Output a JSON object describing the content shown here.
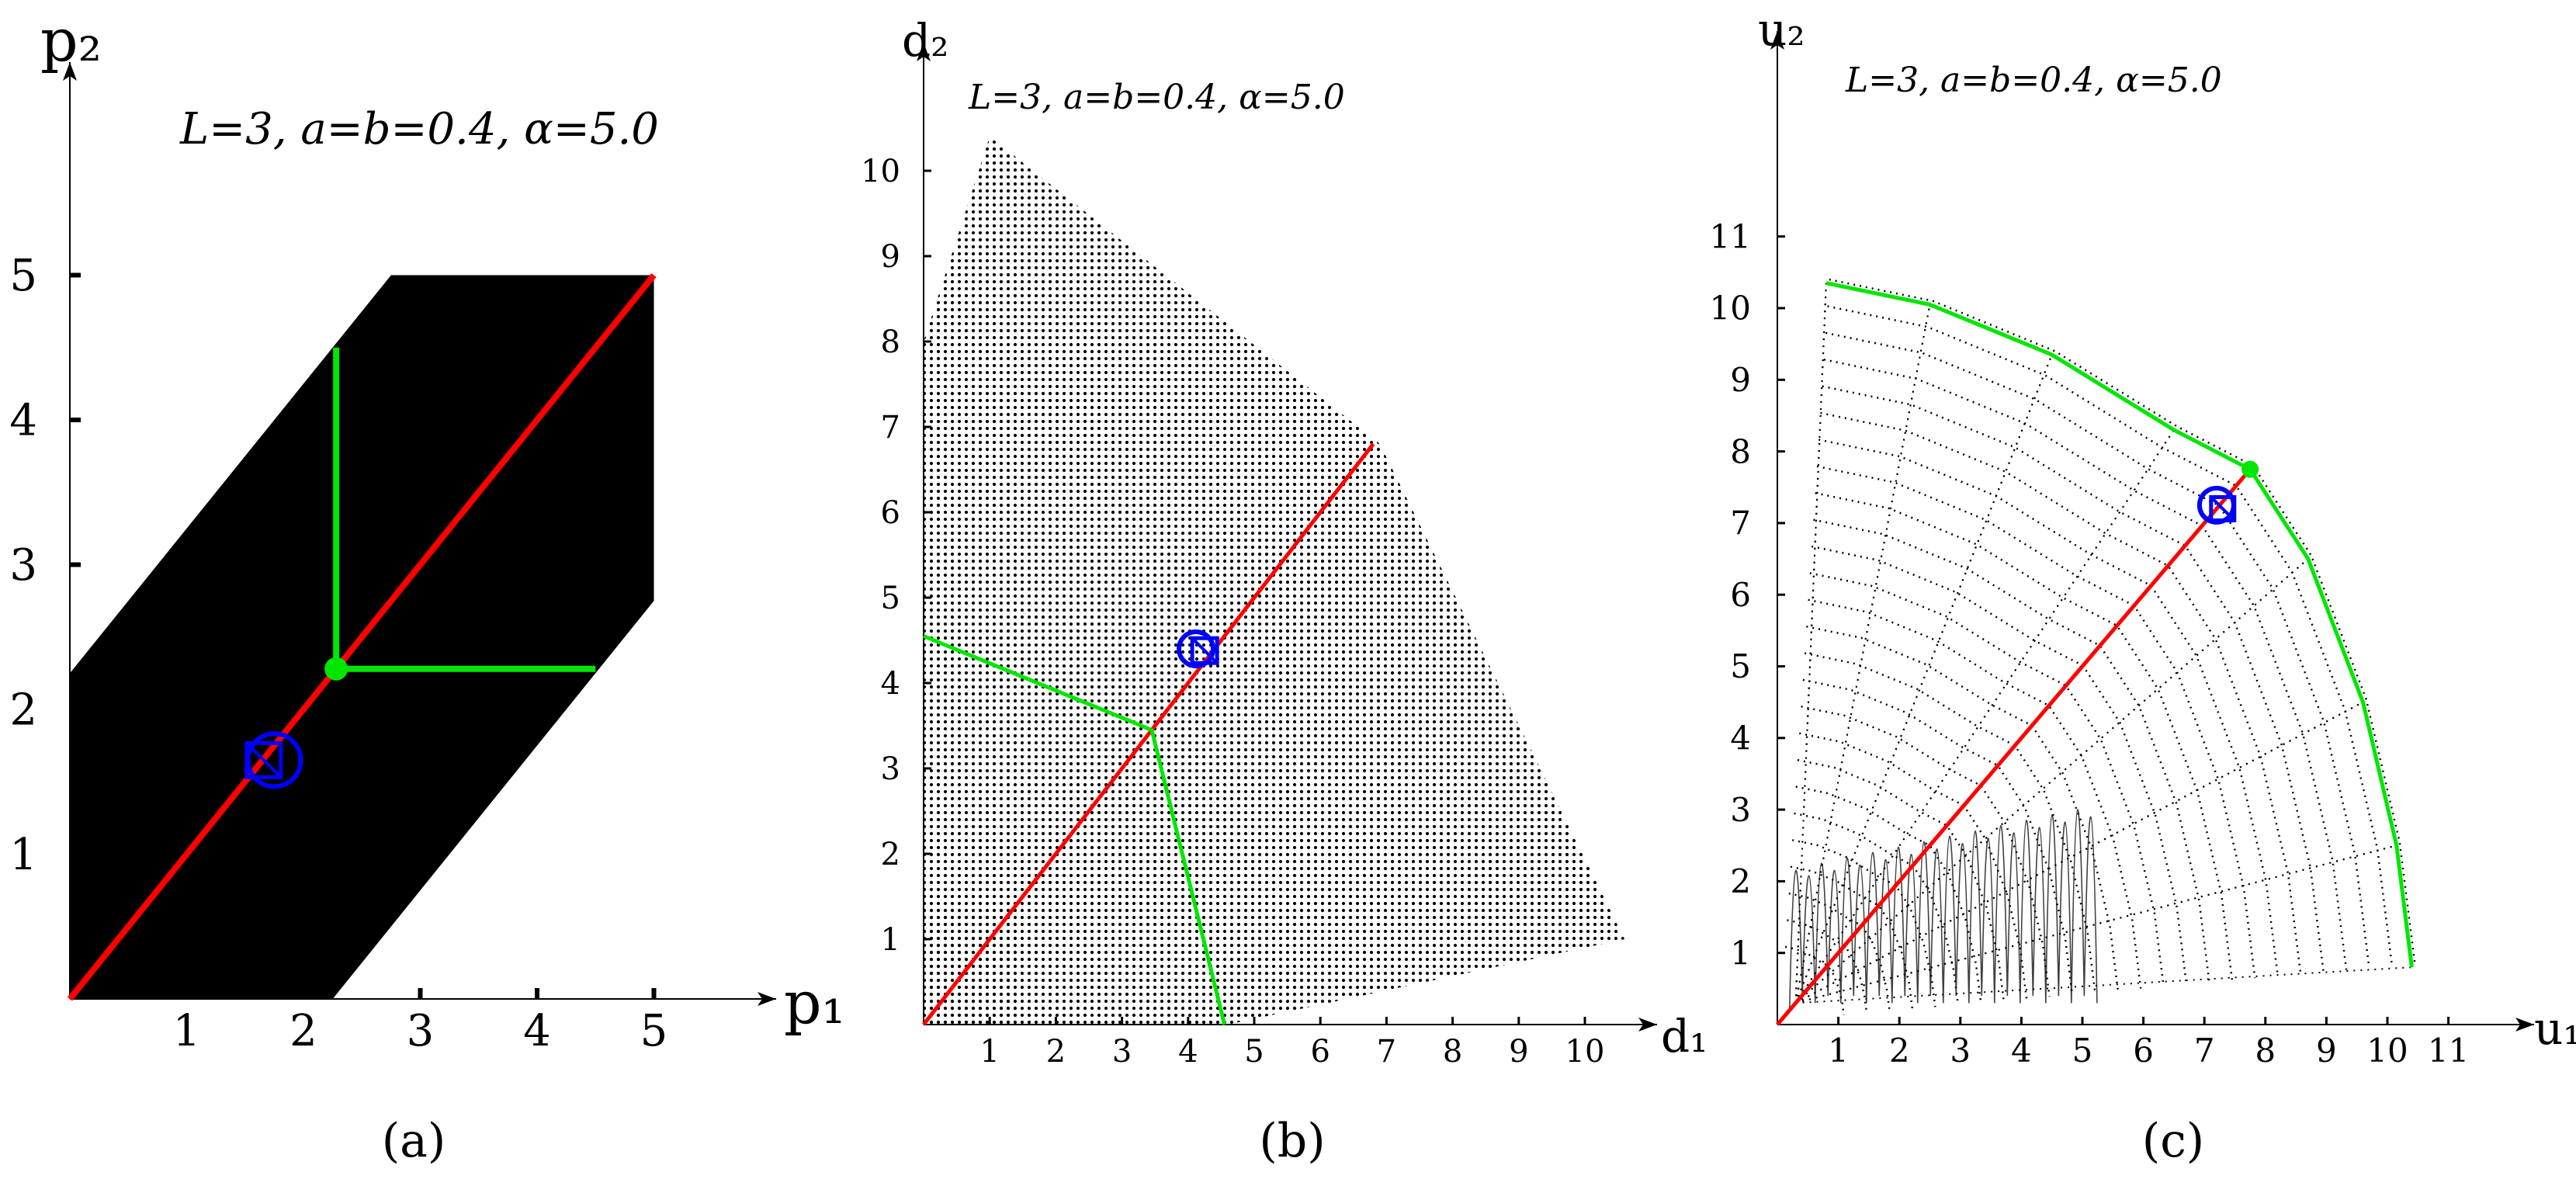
{
  "chart_data": [
    {
      "type": "scatter",
      "panel_label": "(a)",
      "annotation": "L=3, a=b=0.4, α=5.0",
      "xlabel": "p₁",
      "ylabel": "p₂",
      "x_ticks": [
        "1",
        "2",
        "3",
        "4",
        "5"
      ],
      "y_ticks": [
        "1",
        "2",
        "3",
        "4",
        "5"
      ],
      "xlim": [
        0,
        5.5
      ],
      "ylim": [
        0,
        5.8
      ],
      "region": {
        "color": "#000000",
        "vertices": [
          [
            0,
            0
          ],
          [
            0,
            2.25
          ],
          [
            2.75,
            5.0
          ],
          [
            5.0,
            5.0
          ],
          [
            5.0,
            2.75
          ],
          [
            2.25,
            0
          ]
        ]
      },
      "series": [
        {
          "color": "#ff0000",
          "points": [
            [
              0,
              0
            ],
            [
              5.0,
              5.0
            ]
          ]
        },
        {
          "color": "#00e600",
          "points": [
            [
              2.28,
              4.5
            ],
            [
              2.28,
              2.28
            ],
            [
              4.5,
              2.28
            ]
          ]
        }
      ],
      "markers": [
        {
          "shape": "dot",
          "color": "#00e600",
          "x": 2.28,
          "y": 2.28
        },
        {
          "shape": "circle",
          "color": "#0000ff",
          "x": 1.75,
          "y": 1.65
        },
        {
          "shape": "square",
          "color": "#0000ff",
          "x": 1.66,
          "y": 1.65
        }
      ],
      "grid": false
    },
    {
      "type": "scatter",
      "panel_label": "(b)",
      "annotation": "L=3, a=b=0.4, α=5.0",
      "xlabel": "d₁",
      "ylabel": "d₂",
      "x_ticks": [
        "1",
        "2",
        "3",
        "4",
        "5",
        "6",
        "7",
        "8",
        "9",
        "10"
      ],
      "y_ticks": [
        "1",
        "2",
        "3",
        "4",
        "5",
        "6",
        "7",
        "8",
        "9",
        "10"
      ],
      "xlim": [
        0,
        11.3
      ],
      "ylim": [
        0,
        11.6
      ],
      "region": {
        "color": "#000000",
        "vertices": [
          [
            0,
            0
          ],
          [
            0,
            8.0
          ],
          [
            1.0,
            10.4
          ],
          [
            6.9,
            6.8
          ],
          [
            10.6,
            1.0
          ],
          [
            4.6,
            0
          ]
        ]
      },
      "series": [
        {
          "color": "#ff0000",
          "points": [
            [
              0,
              0
            ],
            [
              6.8,
              6.8
            ]
          ]
        },
        {
          "color": "#00e600",
          "points": [
            [
              0,
              4.55
            ],
            [
              3.45,
              3.45
            ],
            [
              4.55,
              0
            ]
          ]
        }
      ],
      "markers": [
        {
          "shape": "circle",
          "color": "#0000ff",
          "x": 4.12,
          "y": 4.4
        },
        {
          "shape": "square",
          "color": "#0000ff",
          "x": 4.25,
          "y": 4.38
        }
      ],
      "grid": false
    },
    {
      "type": "scatter",
      "panel_label": "(c)",
      "annotation": "L=3, a=b=0.4, α=5.0",
      "xlabel": "u₁",
      "ylabel": "u₂",
      "x_ticks": [
        "1",
        "2",
        "3",
        "4",
        "5",
        "6",
        "7",
        "8",
        "9",
        "10",
        "11"
      ],
      "y_ticks": [
        "1",
        "2",
        "3",
        "4",
        "5",
        "6",
        "7",
        "8",
        "9",
        "10",
        "11"
      ],
      "xlim": [
        0,
        12.3
      ],
      "ylim": [
        0,
        12.3
      ],
      "series": [
        {
          "color": "#ff0000",
          "points": [
            [
              0,
              0
            ],
            [
              7.75,
              7.75
            ]
          ]
        },
        {
          "color": "#00e600",
          "points": [
            [
              0.8,
              10.35
            ],
            [
              2.5,
              10.05
            ],
            [
              4.5,
              9.35
            ],
            [
              6.5,
              8.3
            ],
            [
              7.75,
              7.75
            ],
            [
              8.7,
              6.5
            ],
            [
              9.6,
              4.5
            ],
            [
              10.15,
              2.5
            ],
            [
              10.4,
              0.8
            ]
          ]
        }
      ],
      "markers": [
        {
          "shape": "dot",
          "color": "#00e600",
          "x": 7.75,
          "y": 7.75
        },
        {
          "shape": "circle",
          "color": "#0000ff",
          "x": 7.2,
          "y": 7.25
        },
        {
          "shape": "square",
          "color": "#0000ff",
          "x": 7.3,
          "y": 7.2
        }
      ],
      "grid": false
    }
  ]
}
